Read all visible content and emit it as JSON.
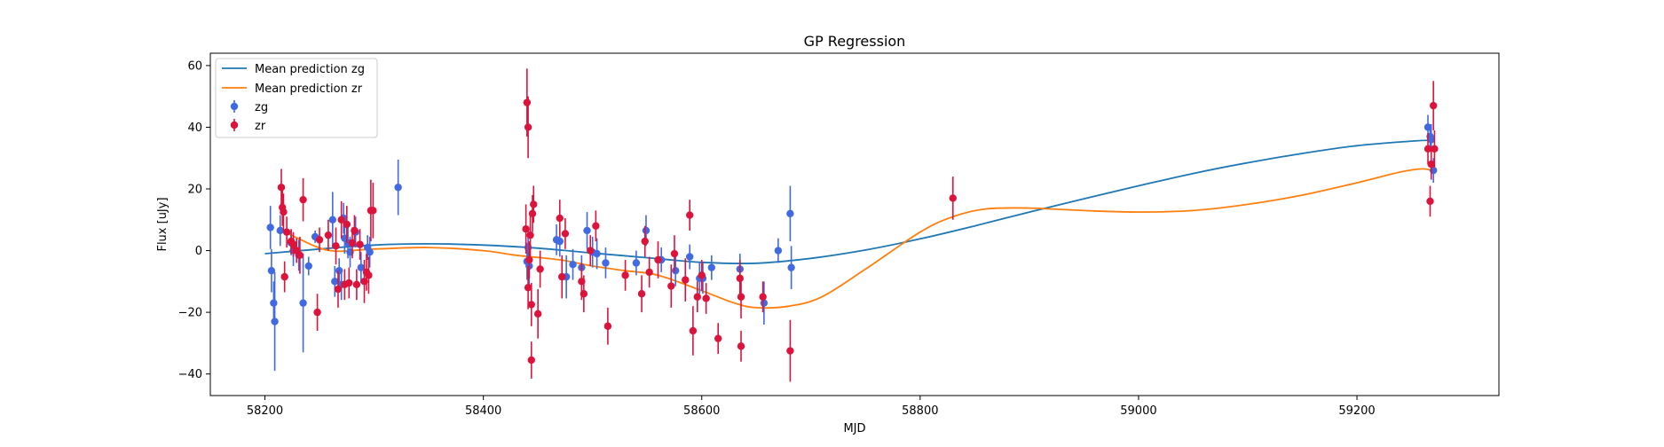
{
  "chart_data": {
    "type": "scatter",
    "title": "GP Regression",
    "xlabel": "MJD",
    "ylabel": "Flux [uJy]",
    "xlim": [
      58150,
      59330
    ],
    "ylim": [
      -47,
      64
    ],
    "x_ticks": [
      58200,
      58400,
      58600,
      58800,
      59000,
      59200
    ],
    "y_ticks": [
      -40,
      -20,
      0,
      20,
      40,
      60
    ],
    "grid": false,
    "legend_position": "top-left",
    "colors": {
      "mean_zg": "#1f77b4",
      "mean_zr": "#ff7f0e",
      "zg": "#4169e1",
      "zr": "#dc143c"
    },
    "legend": [
      {
        "label": "Mean prediction zg",
        "kind": "line",
        "color": "#1f77b4"
      },
      {
        "label": "Mean prediction zr",
        "kind": "line",
        "color": "#ff7f0e"
      },
      {
        "label": "zg",
        "kind": "errorbar",
        "color": "#4169e1"
      },
      {
        "label": "zr",
        "kind": "errorbar",
        "color": "#dc143c"
      }
    ],
    "lines": [
      {
        "name": "Mean prediction zg",
        "color": "#1f77b4",
        "x": [
          58200,
          58250,
          58300,
          58350,
          58400,
          58450,
          58500,
          58550,
          58600,
          58650,
          58700,
          58750,
          58800,
          58850,
          58900,
          58950,
          59000,
          59050,
          59100,
          59150,
          59200,
          59250,
          59270
        ],
        "y": [
          -1,
          0.5,
          1.8,
          2.2,
          1.8,
          0.8,
          -0.8,
          -2.3,
          -3.8,
          -4.1,
          -2.5,
          0.2,
          3.8,
          8,
          12.5,
          16.8,
          21,
          25,
          28.5,
          31.5,
          34,
          35.5,
          35.8
        ]
      },
      {
        "name": "Mean prediction zr",
        "color": "#ff7f0e",
        "x": [
          58215,
          58230,
          58260,
          58300,
          58350,
          58400,
          58430,
          58470,
          58500,
          58530,
          58560,
          58600,
          58630,
          58650,
          58680,
          58710,
          58750,
          58800,
          58830,
          58860,
          58900,
          58950,
          59000,
          59050,
          59100,
          59150,
          59200,
          59240,
          59260,
          59268
        ],
        "y": [
          7,
          4,
          0,
          0.5,
          1,
          0,
          -1.5,
          -3,
          -5,
          -6.5,
          -8,
          -13,
          -17,
          -18.5,
          -18,
          -15,
          -6,
          6,
          11,
          13.5,
          13.8,
          13,
          12.5,
          13,
          15,
          18,
          22,
          25.5,
          26.5,
          26
        ]
      }
    ],
    "series": [
      {
        "name": "zg",
        "color": "#4169e1",
        "x": [
          58205,
          58206,
          58208,
          58209,
          58214,
          58224,
          58226,
          58231,
          58235,
          58240,
          58246,
          58262,
          58264,
          58268,
          58270,
          58272,
          58273,
          58276,
          58278,
          58283,
          58288,
          58294,
          58296,
          58322,
          58440,
          58441,
          58442,
          58467,
          58470,
          58476,
          58482,
          58490,
          58495,
          58500,
          58504,
          58512,
          58540,
          58549,
          58563,
          58576,
          58589,
          58598,
          58601,
          58609,
          58635,
          58657,
          58670,
          58681,
          58682,
          59265,
          59267,
          59268,
          59270
        ],
        "y": [
          7.5,
          -6.5,
          -17,
          -23,
          6.5,
          2.5,
          0,
          -1.5,
          -17,
          -5,
          4.5,
          10,
          -10,
          -6.5,
          -11,
          10.5,
          4,
          2.5,
          -0.5,
          6,
          -5.5,
          1,
          -0.5,
          20.5,
          -3.5,
          1,
          -5,
          3.5,
          3,
          -8.5,
          -4.5,
          -5.5,
          6.5,
          -0.5,
          -1,
          -4,
          -4,
          6.5,
          -3,
          -6.5,
          -2,
          -9,
          -9,
          -5.5,
          -6,
          -17,
          0,
          12,
          -5.5,
          40,
          37,
          36,
          26
        ],
        "err": [
          7,
          7,
          7,
          16,
          5,
          4,
          5,
          5,
          16,
          3,
          2,
          9,
          5,
          4,
          5,
          5,
          5,
          5,
          5,
          5,
          5,
          4,
          5,
          9,
          6,
          6,
          6,
          5,
          5,
          7,
          5,
          4,
          6,
          5,
          5,
          5,
          4,
          5,
          4,
          5,
          4,
          5,
          5,
          4,
          5,
          7,
          4,
          9,
          7,
          4,
          4,
          5,
          4
        ]
      },
      {
        "name": "zr",
        "color": "#dc143c",
        "x": [
          58215,
          58216,
          58217,
          58218,
          58220,
          58224,
          58226,
          58229,
          58232,
          58235,
          58248,
          58250,
          58258,
          58265,
          58267,
          58270,
          58273,
          58275,
          58277,
          58280,
          58282,
          58284,
          58287,
          58291,
          58293,
          58295,
          58297,
          58299,
          58439,
          58440,
          58441,
          58441,
          58442,
          58443,
          58444,
          58444,
          58445,
          58446,
          58450,
          58452,
          58470,
          58472,
          58475,
          58490,
          58492,
          58498,
          58503,
          58514,
          58530,
          58545,
          58548,
          58552,
          58560,
          58572,
          58575,
          58585,
          58589,
          58592,
          58596,
          58600,
          58604,
          58615,
          58635,
          58636,
          58636,
          58656,
          58681,
          58830,
          59265,
          59267,
          59268,
          59270,
          59271
        ],
        "y": [
          20.5,
          14,
          12.5,
          -8.5,
          6,
          3,
          2,
          0,
          -1.5,
          16.5,
          -20,
          3.5,
          5,
          1.5,
          -12.5,
          10,
          -11,
          8.5,
          -10.5,
          2.5,
          6.5,
          -11,
          2,
          -10,
          -7,
          -8,
          13,
          13,
          7,
          48,
          40,
          -12,
          -3,
          5,
          -35.5,
          -17.5,
          12,
          15,
          -20.5,
          -6,
          10.5,
          -8.5,
          5.5,
          -10,
          -14,
          0,
          8,
          -24.5,
          -8,
          -14,
          3,
          -7,
          -3,
          -11.5,
          -1,
          -9.5,
          11.5,
          -26,
          -15,
          -8,
          -15.5,
          -28.5,
          -9,
          -15,
          -31,
          -15,
          -32.5,
          17,
          33,
          16,
          28,
          47,
          33
        ],
        "err": [
          6,
          6,
          6,
          5,
          5,
          4,
          4,
          4,
          6,
          7,
          6,
          4,
          5,
          6,
          6,
          6,
          5,
          6,
          5,
          5,
          5,
          5,
          5,
          7,
          6,
          6,
          10,
          9,
          8,
          11,
          10,
          7,
          6,
          7,
          6,
          7,
          6,
          6,
          8,
          6,
          6,
          7,
          5,
          6,
          6,
          5,
          5,
          6,
          5,
          6,
          5,
          5,
          6,
          7,
          6,
          7,
          5,
          8,
          5,
          5,
          5,
          5,
          6,
          7,
          5,
          5,
          10,
          7,
          5,
          5,
          5,
          8,
          6
        ]
      }
    ]
  }
}
